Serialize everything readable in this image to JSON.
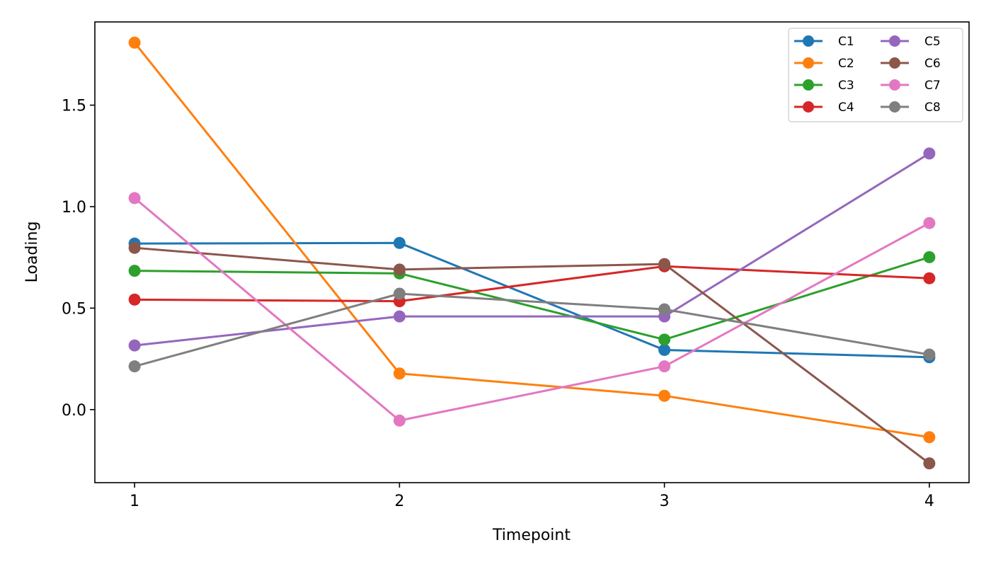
{
  "chart_data": {
    "type": "line",
    "xlabel": "Timepoint",
    "ylabel": "Loading",
    "x": [
      1,
      2,
      3,
      4
    ],
    "x_ticks": [
      "1",
      "2",
      "3",
      "4"
    ],
    "y_ticks": [
      "0.0",
      "0.5",
      "1.0",
      "1.5"
    ],
    "xlim": [
      0.85,
      4.15
    ],
    "ylim": [
      -0.36,
      1.91
    ],
    "grid": false,
    "legend_placement": "top-right",
    "legend_columns": 2,
    "series": [
      {
        "name": "C1",
        "color": "#1f77b4",
        "values": [
          0.818,
          0.821,
          0.294,
          0.258
        ]
      },
      {
        "name": "C2",
        "color": "#ff7f0e",
        "values": [
          1.808,
          0.178,
          0.068,
          -0.136
        ]
      },
      {
        "name": "C3",
        "color": "#2ca02c",
        "values": [
          0.684,
          0.671,
          0.345,
          0.751
        ]
      },
      {
        "name": "C4",
        "color": "#d62728",
        "values": [
          0.542,
          0.534,
          0.706,
          0.647
        ]
      },
      {
        "name": "C5",
        "color": "#9467bd",
        "values": [
          0.316,
          0.459,
          0.459,
          1.262
        ]
      },
      {
        "name": "C6",
        "color": "#8c564b",
        "values": [
          0.797,
          0.69,
          0.717,
          -0.265
        ]
      },
      {
        "name": "C7",
        "color": "#e377c2",
        "values": [
          1.042,
          -0.054,
          0.213,
          0.919
        ]
      },
      {
        "name": "C8",
        "color": "#7f7f7f",
        "values": [
          0.213,
          0.571,
          0.494,
          0.271
        ]
      }
    ]
  }
}
